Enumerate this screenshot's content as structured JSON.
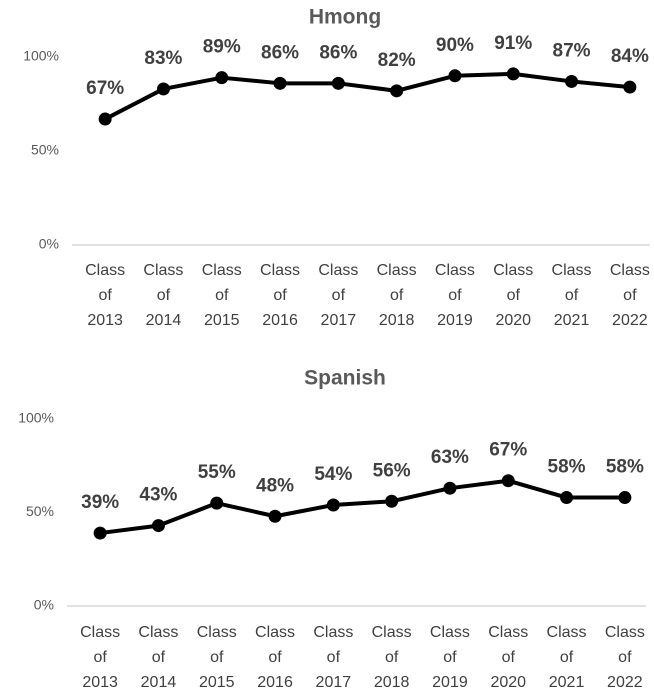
{
  "chart_data": [
    {
      "type": "line",
      "title": "Hmong",
      "categories": [
        "Class of 2013",
        "Class of 2014",
        "Class of 2015",
        "Class of 2016",
        "Class of 2017",
        "Class of 2018",
        "Class of 2019",
        "Class of 2020",
        "Class of 2021",
        "Class of 2022"
      ],
      "values": [
        67,
        83,
        89,
        86,
        86,
        82,
        90,
        91,
        87,
        84
      ],
      "value_labels": [
        "67%",
        "83%",
        "89%",
        "86%",
        "86%",
        "82%",
        "90%",
        "91%",
        "87%",
        "84%"
      ],
      "color": "#000000",
      "ylim": [
        0,
        100
      ],
      "yticks": [
        {
          "value": 0,
          "label": "0%"
        },
        {
          "value": 50,
          "label": "50%"
        },
        {
          "value": 100,
          "label": "100%"
        }
      ],
      "grid": false
    },
    {
      "type": "line",
      "title": "Spanish",
      "categories": [
        "Class of 2013",
        "Class of 2014",
        "Class of 2015",
        "Class of 2016",
        "Class of 2017",
        "Class of 2018",
        "Class of 2019",
        "Class of 2020",
        "Class of 2021",
        "Class of 2022"
      ],
      "values": [
        39,
        43,
        55,
        48,
        54,
        56,
        63,
        67,
        58,
        58
      ],
      "value_labels": [
        "39%",
        "43%",
        "55%",
        "48%",
        "54%",
        "56%",
        "63%",
        "67%",
        "58%",
        "58%"
      ],
      "color": "#000000",
      "ylim": [
        0,
        100
      ],
      "yticks": [
        {
          "value": 0,
          "label": "0%"
        },
        {
          "value": 50,
          "label": "50%"
        },
        {
          "value": 100,
          "label": "100%"
        }
      ],
      "grid": false
    }
  ]
}
